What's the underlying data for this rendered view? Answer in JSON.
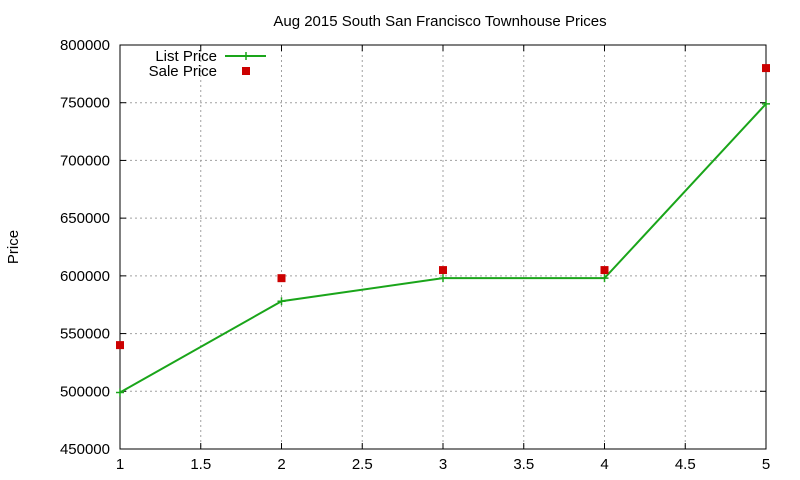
{
  "chart_data": {
    "type": "line",
    "title": "Aug 2015 South San Francisco Townhouse Prices",
    "xlabel": "",
    "ylabel": "Price",
    "xlim": [
      1,
      5
    ],
    "ylim": [
      450000,
      800000
    ],
    "x_ticks": [
      "1",
      "1.5",
      "2",
      "2.5",
      "3",
      "3.5",
      "4",
      "4.5",
      "5"
    ],
    "y_ticks": [
      "800000",
      "750000",
      "700000",
      "650000",
      "600000",
      "550000",
      "500000",
      "450000"
    ],
    "grid": true,
    "legend_position": "top-left",
    "series": [
      {
        "name": "List Price",
        "style": "line+points",
        "color": "#1aa51a",
        "x": [
          1,
          2,
          3,
          4,
          5
        ],
        "values": [
          499000,
          578000,
          598000,
          598000,
          749000
        ]
      },
      {
        "name": "Sale Price",
        "style": "points",
        "color": "#cc0000",
        "x": [
          1,
          2,
          3,
          4,
          5
        ],
        "values": [
          540000,
          598000,
          605000,
          605000,
          780000
        ]
      }
    ]
  }
}
